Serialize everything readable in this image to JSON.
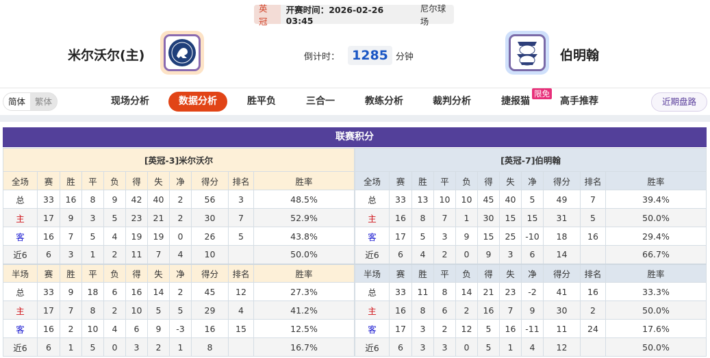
{
  "match": {
    "league": "英冠",
    "time_label": "开赛时间：",
    "time": "2026-02-26 03:45",
    "venue": "尼尔球场",
    "home": "米尔沃尔(主)",
    "away": "伯明翰",
    "countdown_label": "倒计时：",
    "countdown": "1285",
    "countdown_unit": "分钟"
  },
  "lang": {
    "simplified": "简体",
    "traditional": "繁体"
  },
  "nav": {
    "tabs": [
      "现场分析",
      "数据分析",
      "胜平负",
      "三合一",
      "教练分析",
      "裁判分析",
      "捷报猫",
      "高手推荐"
    ],
    "active": "数据分析",
    "free_badge": "限免",
    "recent": "近期盘路"
  },
  "standings": {
    "title": "联赛积分",
    "columns_full": [
      "全场",
      "赛",
      "胜",
      "平",
      "负",
      "得",
      "失",
      "净",
      "得分",
      "排名",
      "胜率"
    ],
    "columns_half": [
      "半场",
      "赛",
      "胜",
      "平",
      "负",
      "得",
      "失",
      "净",
      "得分",
      "排名",
      "胜率"
    ],
    "home": {
      "caption": "[英冠-3]米尔沃尔",
      "full": [
        [
          "总",
          "33",
          "16",
          "8",
          "9",
          "42",
          "40",
          "2",
          "56",
          "3",
          "48.5%"
        ],
        [
          "主",
          "17",
          "9",
          "3",
          "5",
          "23",
          "21",
          "2",
          "30",
          "7",
          "52.9%"
        ],
        [
          "客",
          "16",
          "7",
          "5",
          "4",
          "19",
          "19",
          "0",
          "26",
          "5",
          "43.8%"
        ],
        [
          "近6",
          "6",
          "3",
          "1",
          "2",
          "11",
          "7",
          "4",
          "10",
          "",
          "50.0%"
        ]
      ],
      "half": [
        [
          "总",
          "33",
          "9",
          "18",
          "6",
          "16",
          "14",
          "2",
          "45",
          "12",
          "27.3%"
        ],
        [
          "主",
          "17",
          "7",
          "8",
          "2",
          "10",
          "5",
          "5",
          "29",
          "4",
          "41.2%"
        ],
        [
          "客",
          "16",
          "2",
          "10",
          "4",
          "6",
          "9",
          "-3",
          "16",
          "15",
          "12.5%"
        ],
        [
          "近6",
          "6",
          "1",
          "5",
          "0",
          "3",
          "2",
          "1",
          "8",
          "",
          "16.7%"
        ]
      ]
    },
    "away": {
      "caption": "[英冠-7]伯明翰",
      "full": [
        [
          "总",
          "33",
          "13",
          "10",
          "10",
          "45",
          "40",
          "5",
          "49",
          "7",
          "39.4%"
        ],
        [
          "主",
          "16",
          "8",
          "7",
          "1",
          "30",
          "15",
          "15",
          "31",
          "5",
          "50.0%"
        ],
        [
          "客",
          "17",
          "5",
          "3",
          "9",
          "15",
          "25",
          "-10",
          "18",
          "16",
          "29.4%"
        ],
        [
          "近6",
          "6",
          "4",
          "2",
          "0",
          "9",
          "3",
          "6",
          "14",
          "",
          "66.7%"
        ]
      ],
      "half": [
        [
          "总",
          "33",
          "11",
          "8",
          "14",
          "21",
          "23",
          "-2",
          "41",
          "16",
          "33.3%"
        ],
        [
          "主",
          "16",
          "8",
          "6",
          "2",
          "16",
          "7",
          "9",
          "30",
          "2",
          "50.0%"
        ],
        [
          "客",
          "17",
          "3",
          "2",
          "12",
          "5",
          "16",
          "-11",
          "11",
          "24",
          "17.6%"
        ],
        [
          "近6",
          "6",
          "3",
          "3",
          "0",
          "5",
          "1",
          "4",
          "12",
          "",
          "50.0%"
        ]
      ]
    }
  }
}
